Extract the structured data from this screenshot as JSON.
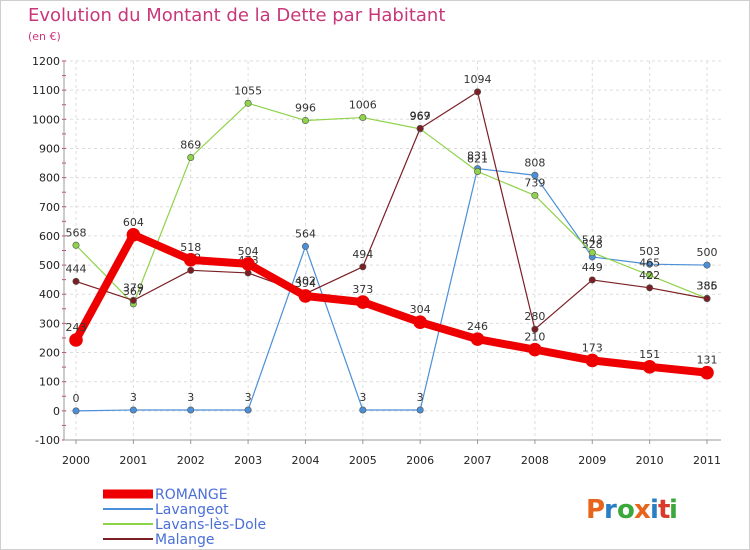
{
  "title": "Evolution du Montant de la Dette par Habitant",
  "subtitle": "(en €)",
  "logo": {
    "text": "Proxiti",
    "colors": [
      "#e8641b",
      "#2a7fc4",
      "#3aa83a",
      "#e8641b",
      "#2a7fc4",
      "#d93a2b",
      "#3aa83a"
    ]
  },
  "chart_data": {
    "type": "line",
    "title": "Evolution du Montant de la Dette par Habitant",
    "subtitle": "(en €)",
    "xlabel": "",
    "ylabel": "",
    "x": [
      "2000",
      "2001",
      "2002",
      "2003",
      "2004",
      "2005",
      "2006",
      "2007",
      "2008",
      "2009",
      "2010",
      "2011"
    ],
    "ylim": [
      -100,
      1200
    ],
    "yticks": [
      -100,
      0,
      100,
      200,
      300,
      400,
      500,
      600,
      700,
      800,
      900,
      1000,
      1100,
      1200
    ],
    "grid": true,
    "legend_position": "bottom-left",
    "series": [
      {
        "name": "Lavangeot",
        "color": "#4a8fd8",
        "width": 1.2,
        "values": [
          0,
          3,
          3,
          3,
          564,
          3,
          3,
          831,
          808,
          528,
          503,
          500
        ]
      },
      {
        "name": "Lavans-lès-Dole",
        "color": "#8fd34a",
        "width": 1.2,
        "values": [
          568,
          367,
          869,
          1055,
          996,
          1006,
          967,
          821,
          739,
          543,
          465,
          386
        ]
      },
      {
        "name": "Malange",
        "color": "#7a1f24",
        "width": 1.2,
        "values": [
          444,
          379,
          482,
          473,
          402,
          494,
          969,
          1094,
          280,
          449,
          422,
          385
        ]
      },
      {
        "name": "ROMANGE",
        "color": "#ee0000",
        "width": 8,
        "values": [
          243,
          604,
          518,
          504,
          394,
          373,
          304,
          246,
          210,
          173,
          151,
          131
        ]
      }
    ],
    "legend": [
      "ROMANGE",
      "Lavangeot",
      "Lavans-lès-Dole",
      "Malange"
    ],
    "data_labels": {
      "Lavangeot": [
        "0",
        "3",
        "3",
        "3",
        "564",
        "3",
        "3",
        "831",
        "808",
        "528",
        "503",
        "500"
      ],
      "Lavans-lès-Dole": [
        "568",
        "367",
        "869",
        "1055",
        "996",
        "1006",
        "967",
        "821",
        "739",
        "543",
        "465",
        "386"
      ],
      "Malange": [
        "444",
        "379",
        "482",
        "473",
        "402",
        "494",
        "969",
        "1094",
        "280",
        "449",
        "422",
        "385"
      ],
      "ROMANGE": [
        "243",
        "604",
        "518",
        "504",
        "394",
        "373",
        "304",
        "246",
        "210",
        "173",
        "151",
        "131"
      ]
    }
  }
}
